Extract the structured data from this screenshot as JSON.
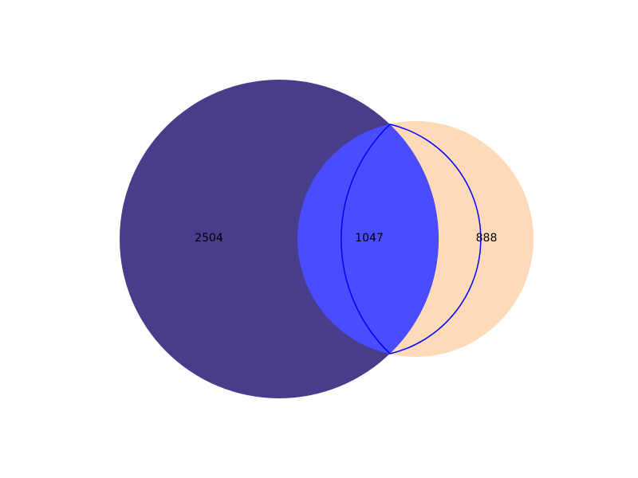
{
  "diagram": {
    "type": "venn2",
    "sets": [
      {
        "key": "A",
        "color": "#483d8b"
      },
      {
        "key": "B",
        "color": "#ffdab9"
      }
    ],
    "intersection_color": "#4b4bff",
    "intersection_outline": "#0000ff",
    "regions": {
      "a_only": "2504",
      "intersection": "1047",
      "b_only": "888"
    }
  }
}
